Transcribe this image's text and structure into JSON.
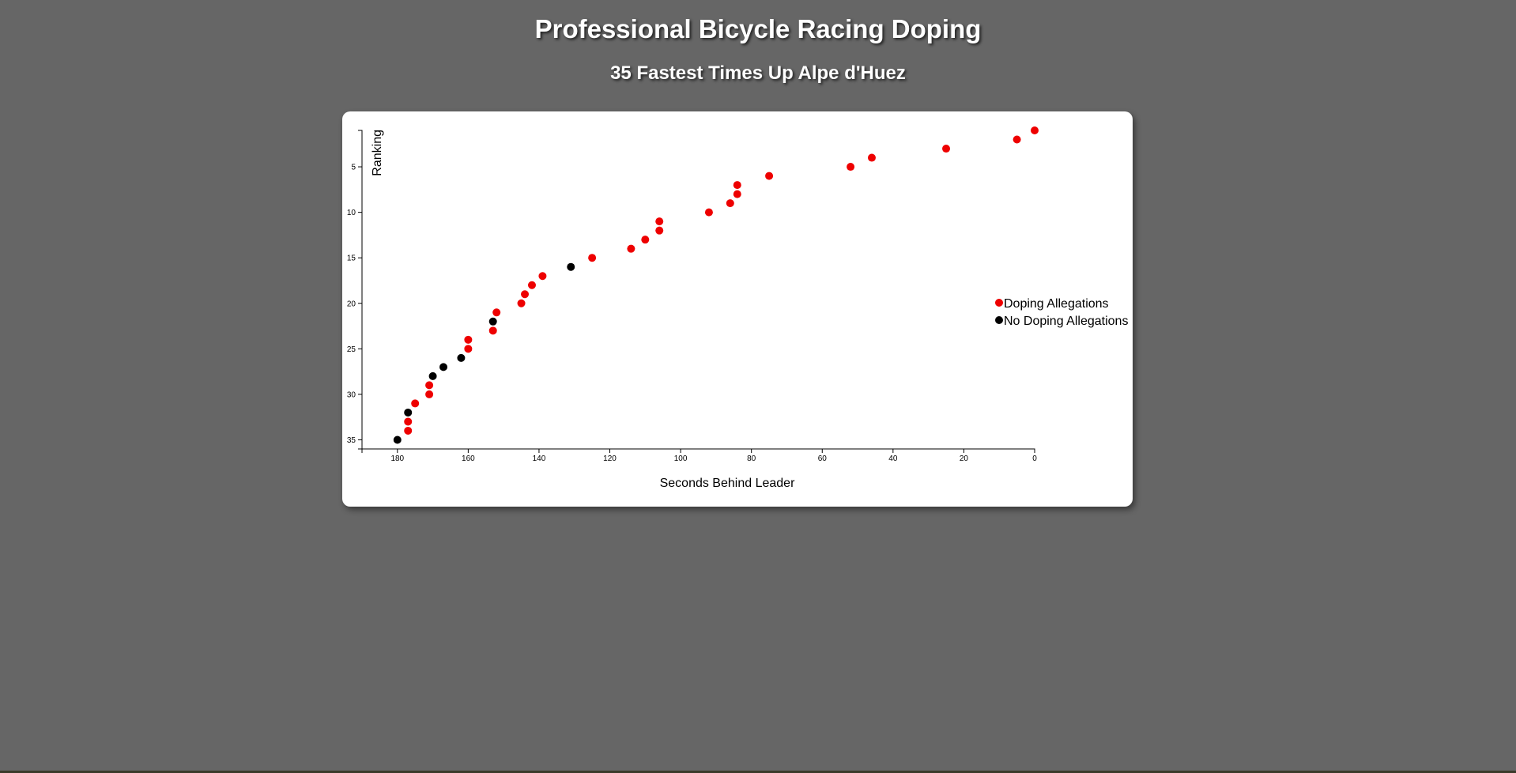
{
  "title": "Professional Bicycle Racing Doping",
  "subtitle": "35 Fastest Times Up Alpe d'Huez",
  "colors": {
    "background": "#666666",
    "card": "#ffffff",
    "doping": "#ee0000",
    "no_doping": "#000000"
  },
  "chart_data": {
    "type": "scatter",
    "title": "",
    "xlabel": "Seconds Behind Leader",
    "ylabel": "Ranking",
    "xlim": [
      190,
      0
    ],
    "ylim": [
      1,
      36
    ],
    "x_ticks": [
      180,
      160,
      140,
      120,
      100,
      80,
      60,
      40,
      20,
      0
    ],
    "y_ticks": [
      5,
      10,
      15,
      20,
      25,
      30,
      35
    ],
    "grid": false,
    "legend": "right",
    "legend_entries": [
      {
        "label": "Doping Allegations",
        "color": "#ee0000"
      },
      {
        "label": "No Doping Allegations",
        "color": "#000000"
      }
    ],
    "series": [
      {
        "name": "Doping Allegations",
        "color": "#ee0000",
        "points": [
          {
            "x": 0,
            "y": 1
          },
          {
            "x": 5,
            "y": 2
          },
          {
            "x": 25,
            "y": 3
          },
          {
            "x": 46,
            "y": 4
          },
          {
            "x": 52,
            "y": 5
          },
          {
            "x": 75,
            "y": 6
          },
          {
            "x": 84,
            "y": 7
          },
          {
            "x": 84,
            "y": 8
          },
          {
            "x": 86,
            "y": 9
          },
          {
            "x": 92,
            "y": 10
          },
          {
            "x": 106,
            "y": 11
          },
          {
            "x": 106,
            "y": 12
          },
          {
            "x": 110,
            "y": 13
          },
          {
            "x": 114,
            "y": 14
          },
          {
            "x": 125,
            "y": 15
          },
          {
            "x": 139,
            "y": 17
          },
          {
            "x": 142,
            "y": 18
          },
          {
            "x": 144,
            "y": 19
          },
          {
            "x": 145,
            "y": 20
          },
          {
            "x": 152,
            "y": 21
          },
          {
            "x": 153,
            "y": 23
          },
          {
            "x": 160,
            "y": 24
          },
          {
            "x": 160,
            "y": 25
          },
          {
            "x": 171,
            "y": 29
          },
          {
            "x": 171,
            "y": 30
          },
          {
            "x": 175,
            "y": 31
          },
          {
            "x": 177,
            "y": 33
          },
          {
            "x": 177,
            "y": 34
          }
        ]
      },
      {
        "name": "No Doping Allegations",
        "color": "#000000",
        "points": [
          {
            "x": 131,
            "y": 16
          },
          {
            "x": 153,
            "y": 22
          },
          {
            "x": 162,
            "y": 26
          },
          {
            "x": 167,
            "y": 27
          },
          {
            "x": 170,
            "y": 28
          },
          {
            "x": 177,
            "y": 32
          },
          {
            "x": 180,
            "y": 35
          }
        ]
      }
    ]
  }
}
